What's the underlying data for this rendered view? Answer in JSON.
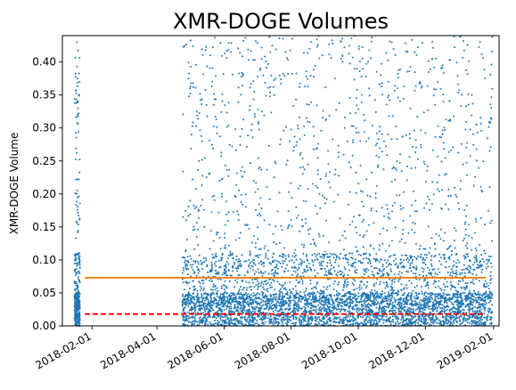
{
  "chart_data": {
    "type": "scatter",
    "title": "XMR-DOGE Volumes",
    "xlabel": "",
    "ylabel": "XMR-DOGE Volume",
    "ylim": [
      0,
      0.44
    ],
    "xlim": [
      "2018-01-05",
      "2019-02-06"
    ],
    "yticks": [
      "0.00",
      "0.05",
      "0.10",
      "0.15",
      "0.20",
      "0.25",
      "0.30",
      "0.35",
      "0.40"
    ],
    "xticks": [
      "2018-02-01",
      "2018-04-01",
      "2018-06-01",
      "2018-08-01",
      "2018-10-01",
      "2018-12-01",
      "2019-02-01"
    ],
    "grid": false,
    "point_color": "#1f77b4",
    "data_ranges": [
      [
        "2018-01-16",
        "2018-01-21"
      ],
      [
        "2018-04-24",
        "2019-01-31"
      ]
    ],
    "hlines": [
      {
        "y": 0.073,
        "color": "#ff7f0e",
        "style": "solid"
      },
      {
        "y": 0.018,
        "color": "#ff0000",
        "style": "dashed"
      }
    ]
  }
}
